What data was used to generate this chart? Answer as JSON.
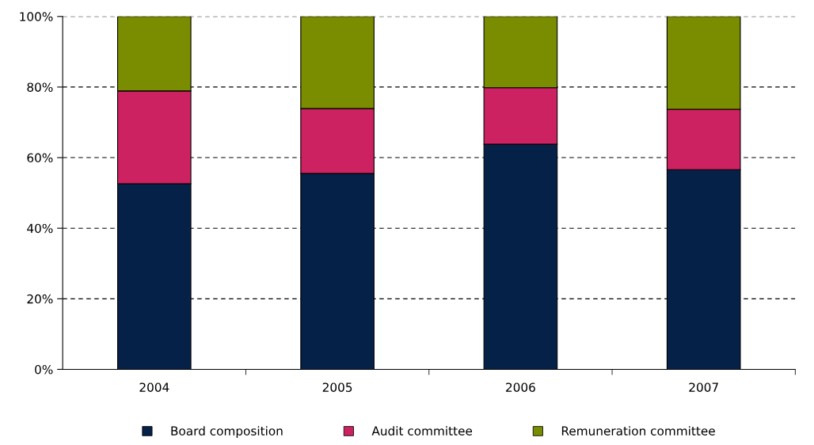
{
  "chart_data": {
    "type": "bar",
    "stacked": true,
    "categories": [
      "2004",
      "2005",
      "2006",
      "2007"
    ],
    "series": [
      {
        "name": "Board composition",
        "color": "#062148",
        "values": [
          52.6,
          55.5,
          63.8,
          56.6
        ]
      },
      {
        "name": "Audit committee",
        "color": "#cc2262",
        "values": [
          26.3,
          18.4,
          16.0,
          17.1
        ]
      },
      {
        "name": "Remuneration committee",
        "color": "#7a8c00",
        "values": [
          21.1,
          26.1,
          20.2,
          26.3
        ]
      }
    ],
    "ylim": [
      0,
      100
    ],
    "yticks": [
      {
        "value": 0,
        "label": "0%"
      },
      {
        "value": 20,
        "label": "20%"
      },
      {
        "value": 40,
        "label": "40%"
      },
      {
        "value": 60,
        "label": "60%"
      },
      {
        "value": 80,
        "label": "80%"
      },
      {
        "value": 100,
        "label": "100%"
      }
    ],
    "grid": "y",
    "legend": "bottom"
  }
}
